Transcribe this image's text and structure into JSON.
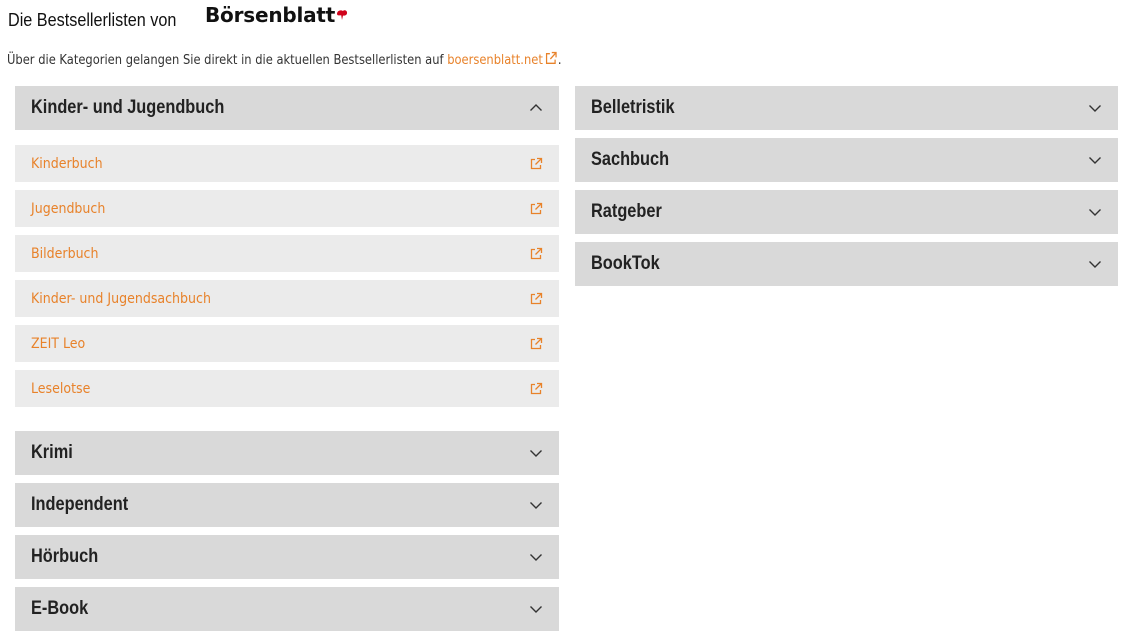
{
  "header": {
    "title": "Die Bestsellerlisten von",
    "brand": "Börsenblatt",
    "brand_color": "#d0021b"
  },
  "intro": {
    "text": "Über die Kategorien gelangen Sie direkt in die aktuellen Bestsellerlisten auf",
    "link_text": "boersenblatt.net",
    "link_icon": "external-link-icon",
    "suffix": "."
  },
  "colors": {
    "accent": "#e8822a",
    "header_bg": "#d9d9d9",
    "item_bg": "#ebebeb"
  },
  "left_column": {
    "open": {
      "title": "Kinder- und Jugendbuch",
      "icon": "chevron-up-icon",
      "items": [
        {
          "label": "Kinderbuch",
          "icon": "external-link-icon"
        },
        {
          "label": "Jugendbuch",
          "icon": "external-link-icon"
        },
        {
          "label": "Bilderbuch",
          "icon": "external-link-icon"
        },
        {
          "label": "Kinder- und Jugendsachbuch",
          "icon": "external-link-icon"
        },
        {
          "label": "ZEIT Leo",
          "icon": "external-link-icon"
        },
        {
          "label": "Leselotse",
          "icon": "external-link-icon"
        }
      ]
    },
    "closed": [
      {
        "title": "Krimi",
        "icon": "chevron-down-icon"
      },
      {
        "title": "Independent",
        "icon": "chevron-down-icon"
      },
      {
        "title": "Hörbuch",
        "icon": "chevron-down-icon"
      },
      {
        "title": "E-Book",
        "icon": "chevron-down-icon"
      }
    ]
  },
  "right_column": {
    "closed": [
      {
        "title": "Belletristik",
        "icon": "chevron-down-icon"
      },
      {
        "title": "Sachbuch",
        "icon": "chevron-down-icon"
      },
      {
        "title": "Ratgeber",
        "icon": "chevron-down-icon"
      },
      {
        "title": "BookTok",
        "icon": "chevron-down-icon"
      }
    ]
  }
}
